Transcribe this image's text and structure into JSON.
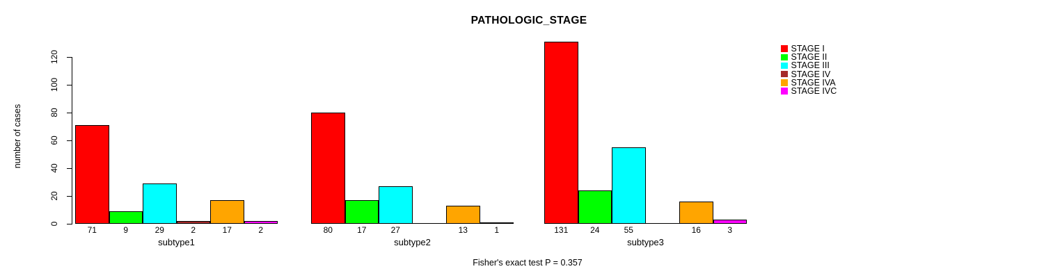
{
  "title": "PATHOLOGIC_STAGE",
  "footer_note": "Fisher's exact test P = 0.357",
  "chart_data": {
    "type": "bar",
    "title": "PATHOLOGIC_STAGE",
    "xlabel": "",
    "ylabel": "number of cases",
    "categories": [
      "subtype1",
      "subtype2",
      "subtype3"
    ],
    "series": [
      {
        "name": "STAGE I",
        "color": "#FF0000",
        "values": [
          71,
          80,
          131
        ]
      },
      {
        "name": "STAGE II",
        "color": "#00FF00",
        "values": [
          9,
          17,
          24
        ]
      },
      {
        "name": "STAGE III",
        "color": "#00FFFF",
        "values": [
          29,
          27,
          55
        ]
      },
      {
        "name": "STAGE IV",
        "color": "#A52A2A",
        "values": [
          2,
          0,
          0
        ]
      },
      {
        "name": "STAGE IVA",
        "color": "#FFA500",
        "values": [
          17,
          13,
          16
        ]
      },
      {
        "name": "STAGE IVC",
        "color": "#FF00FF",
        "values": [
          2,
          1,
          3
        ]
      }
    ],
    "bar_value_labels": [
      [
        "71",
        "9",
        "29",
        "2",
        "17",
        "2"
      ],
      [
        "80",
        "17",
        "27",
        "",
        "13",
        "1"
      ],
      [
        "131",
        "24",
        "55",
        "",
        "16",
        "3"
      ]
    ],
    "yticks": [
      0,
      20,
      40,
      60,
      80,
      100,
      120
    ],
    "ylim": [
      0,
      131
    ],
    "grid": false,
    "legend_position": "right",
    "annotation": "Fisher's exact test P = 0.357"
  }
}
